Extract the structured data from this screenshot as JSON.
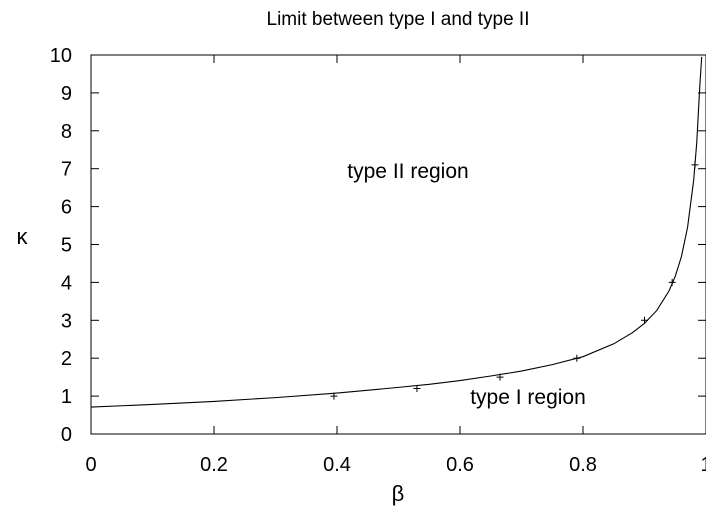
{
  "chart_data": {
    "type": "line",
    "title": "Limit between type I and type II",
    "xlabel": "β",
    "ylabel": "κ",
    "xlim": [
      0,
      1
    ],
    "ylim": [
      0,
      10
    ],
    "grid": false,
    "xticks": [
      "0",
      "0.2",
      "0.4",
      "0.6",
      "0.8",
      "1"
    ],
    "yticks": [
      "0",
      "1",
      "2",
      "3",
      "4",
      "5",
      "6",
      "7",
      "8",
      "9",
      "10"
    ],
    "annotations": [
      "type II region",
      "type I region"
    ],
    "series": [
      {
        "style": "line",
        "x": [
          0,
          0.1,
          0.2,
          0.3,
          0.4,
          0.5,
          0.55,
          0.6,
          0.65,
          0.7,
          0.75,
          0.8,
          0.85,
          0.88,
          0.9,
          0.92,
          0.94,
          0.95,
          0.96,
          0.97,
          0.98,
          0.985,
          0.99,
          0.993
        ],
        "y": [
          0.71,
          0.78,
          0.86,
          0.96,
          1.08,
          1.23,
          1.31,
          1.41,
          1.53,
          1.66,
          1.83,
          2.04,
          2.38,
          2.67,
          2.92,
          3.26,
          3.78,
          4.16,
          4.68,
          5.45,
          6.7,
          7.7,
          9.2,
          9.95
        ]
      },
      {
        "style": "points",
        "marker": "+",
        "x": [
          0.395,
          0.53,
          0.665,
          0.79,
          0.9,
          0.945,
          0.982
        ],
        "y": [
          1.0,
          1.2,
          1.5,
          2.0,
          3.0,
          4.0,
          7.1
        ]
      }
    ]
  }
}
